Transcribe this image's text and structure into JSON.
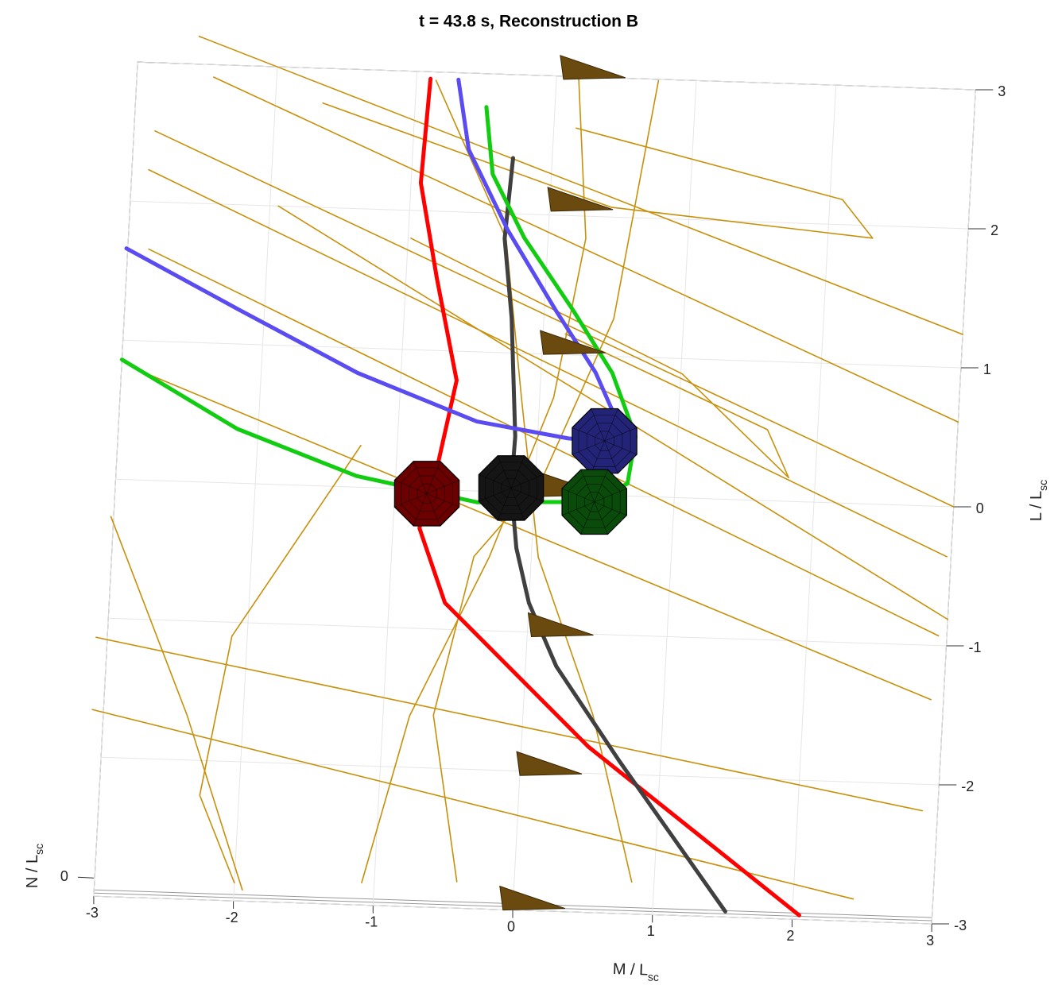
{
  "chart_data": {
    "type": "line",
    "title": "t = 43.8 s, Reconstruction B",
    "xlabel": "M / L",
    "xlabel_sub": "sc",
    "ylabel": "L / L",
    "ylabel_sub": "sc",
    "zlabel": "N / L",
    "zlabel_sub": "sc",
    "xlim": [
      -3,
      3
    ],
    "ylim": [
      -3,
      3
    ],
    "xticks": [
      -3,
      -2,
      -1,
      0,
      1,
      2,
      3
    ],
    "yticks": [
      -3,
      -2,
      -1,
      0,
      1,
      2,
      3
    ],
    "zticks": [
      0
    ],
    "grid": true,
    "field_lines": {
      "color": "#c8900a",
      "lines": [
        {
          "x": [
            -2.85,
            3.0
          ],
          "y": [
            2.51,
            0.0
          ]
        },
        {
          "x": [
            -2.88,
            2.97
          ],
          "y": [
            2.23,
            -0.36
          ]
        },
        {
          "x": [
            -2.85,
            2.94
          ],
          "y": [
            1.66,
            -0.93
          ]
        },
        {
          "x": [
            -2.91,
            2.91
          ],
          "y": [
            0.8,
            -1.39
          ]
        },
        {
          "x": [
            -3.08,
            2.89
          ],
          "y": [
            -1.14,
            -2.19
          ]
        },
        {
          "x": [
            -3.08,
            2.43
          ],
          "y": [
            -1.66,
            -2.84
          ]
        },
        {
          "x": [
            -2.57,
            3.0
          ],
          "y": [
            3.2,
            1.24
          ]
        },
        {
          "x": [
            -2.45,
            3.0
          ],
          "y": [
            2.91,
            0.61
          ]
        },
        {
          "x": [
            -1.94,
            3.0
          ],
          "y": [
            2.0,
            -0.81
          ]
        },
        {
          "x": [
            -3.02,
            -2.4,
            -1.94
          ],
          "y": [
            -0.27,
            -1.68,
            -2.92
          ]
        },
        {
          "x": [
            -1.26,
            -2.11,
            -2.28,
            -2.0
          ],
          "y": [
            0.3,
            -1.1,
            -2.25,
            -2.87
          ]
        },
        {
          "x": [
            -0.41,
            -0.64,
            -0.41,
            0.05,
            0.5,
            0.73
          ],
          "y": [
            -2.81,
            -1.62,
            -0.47,
            0.11,
            1.27,
            2.99
          ]
        },
        {
          "x": [
            -1.09,
            -0.81,
            -0.3,
            0.1,
            0.27,
            0.16
          ],
          "y": [
            -2.84,
            -1.63,
            -0.47,
            0.69,
            1.84,
            2.98
          ]
        },
        {
          "x": [
            0.84,
            0.5,
            0.05,
            -0.13,
            -0.3,
            -0.86
          ],
          "y": [
            -2.77,
            -1.58,
            -0.46,
            0.68,
            1.82,
            2.94
          ]
        },
        {
          "x": [
            -1.66,
            0.44,
            2.32,
            2.09,
            0.16
          ],
          "y": [
            2.75,
            2.07,
            1.91,
            2.18,
            2.63
          ]
        },
        {
          "x": [
            -0.98,
            1.01,
            1.81,
            1.64,
            0.16
          ],
          "y": [
            1.8,
            0.89,
            0.17,
            0.51,
            1.15
          ]
        }
      ]
    },
    "series": [
      {
        "color": "#ff0000",
        "x": [
          2.05,
          0.48,
          -0.6,
          -0.81,
          -0.77,
          -0.71,
          -0.6,
          -0.78,
          -0.93,
          -0.9
        ],
        "y": [
          -2.97,
          -1.81,
          -0.81,
          -0.28,
          -0.03,
          0.14,
          0.79,
          1.52,
          2.2,
          2.95
        ]
      },
      {
        "color": "#404040",
        "x": [
          1.52,
          0.71,
          0.22,
          0.0,
          -0.11,
          -0.17,
          -0.16,
          -0.23,
          -0.31,
          -0.28
        ],
        "y": [
          -2.96,
          -1.91,
          -1.24,
          -0.79,
          -0.4,
          0.03,
          0.4,
          1.25,
          1.82,
          2.4
        ]
      },
      {
        "color": "#5a4cf0",
        "x": [
          -3.01,
          -2.19,
          -1.31,
          -0.44,
          0.22,
          0.48,
          0.59,
          0.39,
          0.08,
          -0.29,
          -0.6,
          -0.7
        ],
        "y": [
          1.66,
          1.25,
          0.82,
          0.5,
          0.4,
          0.39,
          0.48,
          0.88,
          1.32,
          1.88,
          2.45,
          2.95
        ]
      },
      {
        "color": "#11cc11",
        "x": [
          -3.0,
          -2.15,
          -1.28,
          -0.41,
          0.16,
          0.43,
          0.66,
          0.7,
          0.51,
          0.2,
          -0.17,
          -0.42,
          -0.49
        ],
        "y": [
          0.86,
          0.39,
          0.08,
          -0.08,
          -0.06,
          -0.05,
          0.09,
          0.43,
          0.88,
          1.33,
          1.83,
          2.28,
          2.76
        ]
      }
    ],
    "cones": {
      "color": "#6b4a10",
      "x": [
        0.08,
        0.04,
        0.04,
        0.09,
        0.06,
        0.03,
        -0.04
      ],
      "y": [
        3.07,
        2.12,
        1.09,
        0.07,
        -0.94,
        -1.94,
        -2.91
      ]
    },
    "spacecraft": {
      "x": [
        -0.77,
        -0.17,
        0.48,
        0.43
      ],
      "y": [
        -0.03,
        0.03,
        0.39,
        -0.05
      ],
      "colors": [
        "#6a0000",
        "#151515",
        "#232378",
        "#0a4a0a"
      ]
    }
  }
}
